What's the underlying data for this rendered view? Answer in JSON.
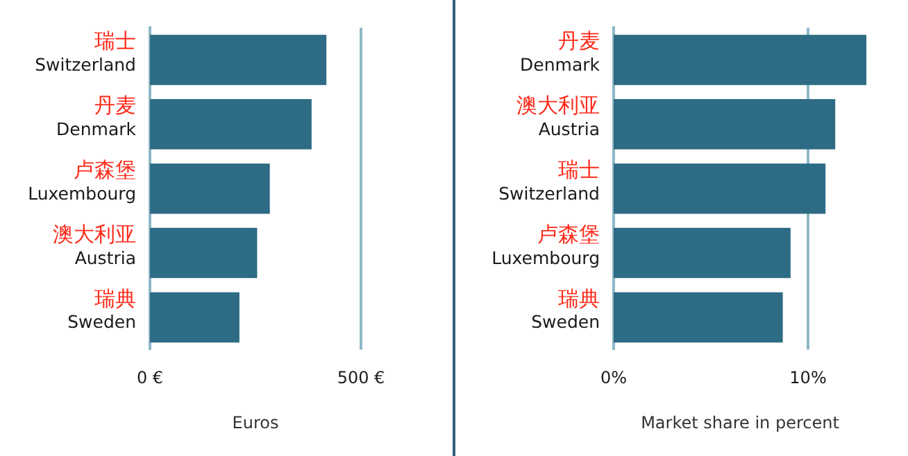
{
  "chart_data": [
    {
      "type": "bar",
      "orientation": "horizontal",
      "xlabel": "Euros",
      "categories": [
        "瑞士\nSwitzerland",
        "丹麦\nDenmark",
        "卢森堡\nLuxembourg",
        "澳大利亚\nAustria",
        "瑞典\nSweden"
      ],
      "values": [
        418,
        383,
        284,
        254,
        212
      ],
      "color": "#2e6b84",
      "xlim": [
        0,
        500
      ],
      "xticks": [
        {
          "value": 0,
          "label": "0 €"
        },
        {
          "value": 500,
          "label": "500 €"
        }
      ],
      "ref_lines": [
        {
          "axis": "x",
          "value": 500,
          "color": "#8fb8c8"
        }
      ],
      "legend": false
    },
    {
      "type": "bar",
      "orientation": "horizontal",
      "xlabel": "Market share in percent",
      "categories": [
        "丹麦\nDenmark",
        "澳大利亚\nAustria",
        "瑞士\nSwitzerland",
        "卢森堡\nLuxembourg",
        "瑞典\nSweden"
      ],
      "values": [
        13.0,
        11.4,
        10.9,
        9.1,
        8.7
      ],
      "color": "#2e6b84",
      "xlim": [
        0,
        13
      ],
      "xticks": [
        {
          "value": 0,
          "label": "0%"
        },
        {
          "value": 10,
          "label": "10%"
        }
      ],
      "ref_lines": [
        {
          "axis": "x",
          "value": 10,
          "color": "#8fb8c8"
        }
      ],
      "legend": false
    }
  ]
}
